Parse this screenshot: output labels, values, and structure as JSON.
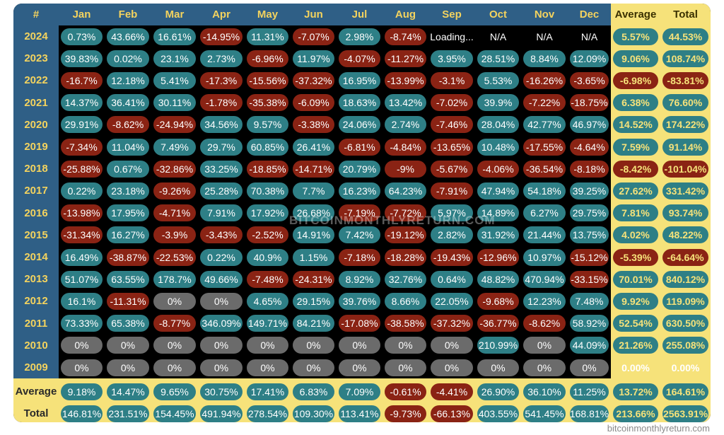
{
  "chart_data": {
    "type": "table",
    "header": [
      "#",
      "Jan",
      "Feb",
      "Mar",
      "Apr",
      "May",
      "Jun",
      "Jul",
      "Aug",
      "Sep",
      "Oct",
      "Nov",
      "Dec",
      "Average",
      "Total"
    ],
    "rows": [
      {
        "label": "2024",
        "cells": [
          "0.73%",
          "43.66%",
          "16.61%",
          "-14.95%",
          "11.31%",
          "-7.07%",
          "2.98%",
          "-8.74%",
          "Loading...",
          "N/A",
          "N/A",
          "N/A",
          "5.57%",
          "44.53%"
        ]
      },
      {
        "label": "2023",
        "cells": [
          "39.83%",
          "0.02%",
          "23.1%",
          "2.73%",
          "-6.96%",
          "11.97%",
          "-4.07%",
          "-11.27%",
          "3.95%",
          "28.51%",
          "8.84%",
          "12.09%",
          "9.06%",
          "108.74%"
        ]
      },
      {
        "label": "2022",
        "cells": [
          "-16.7%",
          "12.18%",
          "5.41%",
          "-17.3%",
          "-15.56%",
          "-37.32%",
          "16.95%",
          "-13.99%",
          "-3.1%",
          "5.53%",
          "-16.26%",
          "-3.65%",
          "-6.98%",
          "-83.81%"
        ]
      },
      {
        "label": "2021",
        "cells": [
          "14.37%",
          "36.41%",
          "30.11%",
          "-1.78%",
          "-35.38%",
          "-6.09%",
          "18.63%",
          "13.42%",
          "-7.02%",
          "39.9%",
          "-7.22%",
          "-18.75%",
          "6.38%",
          "76.60%"
        ]
      },
      {
        "label": "2020",
        "cells": [
          "29.91%",
          "-8.62%",
          "-24.94%",
          "34.56%",
          "9.57%",
          "-3.38%",
          "24.06%",
          "2.74%",
          "-7.46%",
          "28.04%",
          "42.77%",
          "46.97%",
          "14.52%",
          "174.22%"
        ]
      },
      {
        "label": "2019",
        "cells": [
          "-7.34%",
          "11.04%",
          "7.49%",
          "29.7%",
          "60.85%",
          "26.41%",
          "-6.81%",
          "-4.84%",
          "-13.65%",
          "10.48%",
          "-17.55%",
          "-4.64%",
          "7.59%",
          "91.14%"
        ]
      },
      {
        "label": "2018",
        "cells": [
          "-25.88%",
          "0.67%",
          "-32.86%",
          "33.25%",
          "-18.85%",
          "-14.71%",
          "20.79%",
          "-9%",
          "-5.67%",
          "-4.06%",
          "-36.54%",
          "-8.18%",
          "-8.42%",
          "-101.04%"
        ]
      },
      {
        "label": "2017",
        "cells": [
          "0.22%",
          "23.18%",
          "-9.26%",
          "25.28%",
          "70.38%",
          "7.7%",
          "16.23%",
          "64.23%",
          "-7.91%",
          "47.94%",
          "54.18%",
          "39.25%",
          "27.62%",
          "331.42%"
        ]
      },
      {
        "label": "2016",
        "cells": [
          "-13.98%",
          "17.95%",
          "-4.71%",
          "7.91%",
          "17.92%",
          "26.68%",
          "-7.19%",
          "-7.72%",
          "5.97%",
          "14.89%",
          "6.27%",
          "29.75%",
          "7.81%",
          "93.74%"
        ]
      },
      {
        "label": "2015",
        "cells": [
          "-31.34%",
          "16.27%",
          "-3.9%",
          "-3.43%",
          "-2.52%",
          "14.91%",
          "7.42%",
          "-19.12%",
          "2.82%",
          "31.92%",
          "21.44%",
          "13.75%",
          "4.02%",
          "48.22%"
        ]
      },
      {
        "label": "2014",
        "cells": [
          "16.49%",
          "-38.87%",
          "-22.53%",
          "0.22%",
          "40.9%",
          "1.15%",
          "-7.18%",
          "-18.28%",
          "-19.43%",
          "-12.96%",
          "10.97%",
          "-15.12%",
          "-5.39%",
          "-64.64%"
        ]
      },
      {
        "label": "2013",
        "cells": [
          "51.07%",
          "63.55%",
          "178.7%",
          "49.66%",
          "-7.48%",
          "-24.31%",
          "8.92%",
          "32.76%",
          "0.64%",
          "48.82%",
          "470.94%",
          "-33.15%",
          "70.01%",
          "840.12%"
        ]
      },
      {
        "label": "2012",
        "cells": [
          "16.1%",
          "-11.31%",
          "0%",
          "0%",
          "4.65%",
          "29.15%",
          "39.76%",
          "8.66%",
          "22.05%",
          "-9.68%",
          "12.23%",
          "7.48%",
          "9.92%",
          "119.09%"
        ]
      },
      {
        "label": "2011",
        "cells": [
          "73.33%",
          "65.38%",
          "-8.77%",
          "346.09%",
          "149.71%",
          "84.21%",
          "-17.08%",
          "-38.58%",
          "-37.32%",
          "-36.77%",
          "-8.62%",
          "58.92%",
          "52.54%",
          "630.50%"
        ]
      },
      {
        "label": "2010",
        "cells": [
          "0%",
          "0%",
          "0%",
          "0%",
          "0%",
          "0%",
          "0%",
          "0%",
          "0%",
          "210.99%",
          "0%",
          "44.09%",
          "21.26%",
          "255.08%"
        ]
      },
      {
        "label": "2009",
        "cells": [
          "0%",
          "0%",
          "0%",
          "0%",
          "0%",
          "0%",
          "0%",
          "0%",
          "0%",
          "0%",
          "0%",
          "0%",
          "0.00%",
          "0.00%"
        ]
      }
    ],
    "summary_rows": [
      {
        "label": "Average",
        "cells": [
          "9.18%",
          "14.47%",
          "9.65%",
          "30.75%",
          "17.41%",
          "6.83%",
          "7.09%",
          "-0.61%",
          "-4.41%",
          "26.90%",
          "36.10%",
          "11.25%",
          "13.72%",
          "164.61%"
        ]
      },
      {
        "label": "Total",
        "cells": [
          "146.81%",
          "231.51%",
          "154.45%",
          "491.94%",
          "278.54%",
          "109.30%",
          "113.41%",
          "-9.73%",
          "-66.13%",
          "403.55%",
          "541.45%",
          "168.81%",
          "213.66%",
          "2563.91%"
        ]
      }
    ],
    "colors": {
      "positive": "#2e7f86",
      "negative": "#8a2314",
      "zero": "#6b6b6b",
      "header": "#2f5f86",
      "summary": "#f6e27a",
      "accent_text": "#f4d35e"
    }
  },
  "watermark": "BITCOINMONTHLYRETURN.COM",
  "footer": "bitcoinmonthlyreturn.com"
}
